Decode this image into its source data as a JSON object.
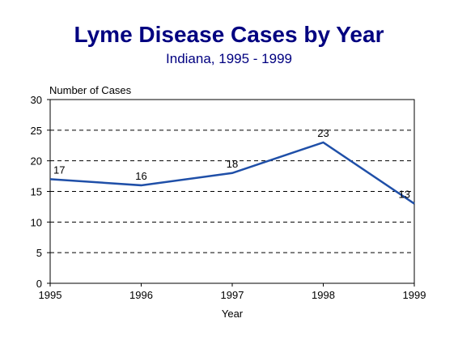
{
  "chart_data": {
    "type": "line",
    "title": "Lyme Disease Cases by Year",
    "subtitle": "Indiana, 1995 - 1999",
    "xlabel": "Year",
    "ylabel": "Number of Cases",
    "x": [
      "1995",
      "1996",
      "1997",
      "1998",
      "1999"
    ],
    "series": [
      {
        "values": [
          17,
          16,
          18,
          23,
          13
        ]
      }
    ],
    "ylim": [
      0,
      30
    ],
    "yticks": [
      0,
      5,
      10,
      15,
      20,
      25,
      30
    ],
    "grid": "horizontal dashed",
    "legend": "none",
    "colors": {
      "title": "#000080",
      "line": "#1f4fa8",
      "text": "#000000"
    }
  }
}
